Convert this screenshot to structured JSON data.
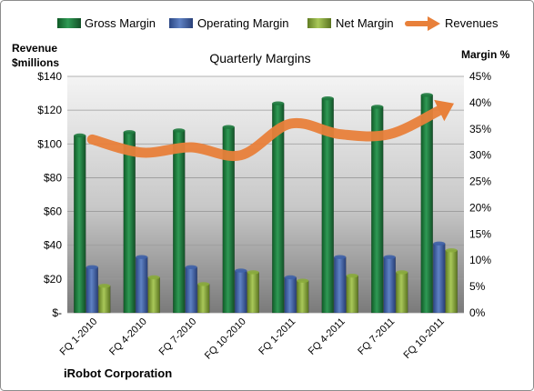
{
  "chart_data": {
    "type": "bar",
    "title": "Quarterly Margins",
    "footer": "iRobot Corporation",
    "ylabel_left": [
      "Revenue",
      "$millions"
    ],
    "ylabel_right": "Margin %",
    "categories": [
      "FQ 1-2010",
      "FQ 4-2010",
      "FQ 7-2010",
      "FQ 10-2010",
      "FQ 1-2011",
      "FQ 4-2011",
      "FQ 7-2011",
      "FQ 10-2011"
    ],
    "left_axis": {
      "ylim": [
        0,
        140
      ],
      "ticks": [
        0,
        20,
        40,
        60,
        80,
        100,
        120,
        140
      ],
      "tick_labels": [
        "$-",
        "$20",
        "$40",
        "$60",
        "$80",
        "$100",
        "$120",
        "$140"
      ]
    },
    "right_axis": {
      "ylim": [
        0,
        45
      ],
      "ticks": [
        0,
        5,
        10,
        15,
        20,
        25,
        30,
        35,
        40,
        45
      ],
      "tick_labels": [
        "0%",
        "5%",
        "10%",
        "15%",
        "20%",
        "25%",
        "30%",
        "35%",
        "40%",
        "45%"
      ]
    },
    "series": [
      {
        "name": "Gross Margin",
        "kind": "bar",
        "axis": "left",
        "color": "#1e7a3e",
        "values": [
          105,
          107,
          108,
          110,
          124,
          127,
          122,
          129
        ]
      },
      {
        "name": "Operating Margin",
        "kind": "bar",
        "axis": "left",
        "color": "#3f62a8",
        "values": [
          27,
          33,
          27,
          25,
          21,
          33,
          33,
          41
        ]
      },
      {
        "name": "Net Margin",
        "kind": "bar",
        "axis": "left",
        "color": "#8aab3c",
        "values": [
          16,
          21,
          17,
          24,
          19,
          22,
          24,
          37
        ]
      },
      {
        "name": "Revenues",
        "kind": "line",
        "axis": "right",
        "color": "#e8803a",
        "values": [
          33,
          30.5,
          31.5,
          30,
          36,
          34,
          34,
          38.5
        ]
      }
    ],
    "legend_position": "top",
    "grid": true
  }
}
